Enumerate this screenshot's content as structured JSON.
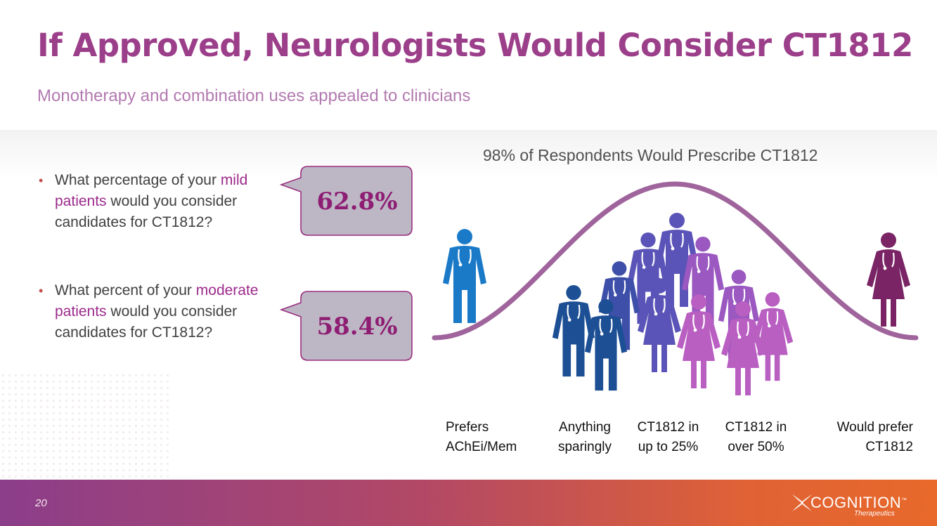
{
  "header": {
    "title": "If Approved, Neurologists Would Consider CT1812",
    "subtitle": "Monotherapy and combination uses appealed to clinicians"
  },
  "questions": [
    {
      "text_before": "What percentage of your ",
      "highlight": "mild patients",
      "text_after": " would you consider candidates for CT1812?",
      "value": "62.8%"
    },
    {
      "text_before": "What percent of your ",
      "highlight": "moderate patients",
      "text_after": " would you consider candidates for CT1812?",
      "value": "58.4%"
    }
  ],
  "chart_data": {
    "type": "infographic",
    "title": "98% of Respondents Would Prescribe CT1812",
    "categories": [
      {
        "line1": "Prefers",
        "line2": "AChEi/Mem"
      },
      {
        "line1": "Anything",
        "line2": "sparingly"
      },
      {
        "line1": "CT1812 in",
        "line2": "up to 25%"
      },
      {
        "line1": "CT1812 in",
        "line2": "over 50%"
      },
      {
        "line1": "Would prefer",
        "line2": "CT1812"
      }
    ]
  },
  "footer": {
    "page_number": "20",
    "logo_word": "COGNITION",
    "logo_sub": "Therapeutics",
    "trademark": "™"
  },
  "colors": {
    "title": "#9c3f8a",
    "curve": "#a0649c",
    "blue_light": "#1a7ac8",
    "blue_dark": "#1d4f94",
    "indigo": "#5b54b8",
    "purple": "#9a58c0",
    "magenta": "#b95fc2",
    "plum": "#7a2466"
  },
  "icons": [
    "doctor-male-icon",
    "doctor-female-icon",
    "cognition-logo-icon"
  ]
}
